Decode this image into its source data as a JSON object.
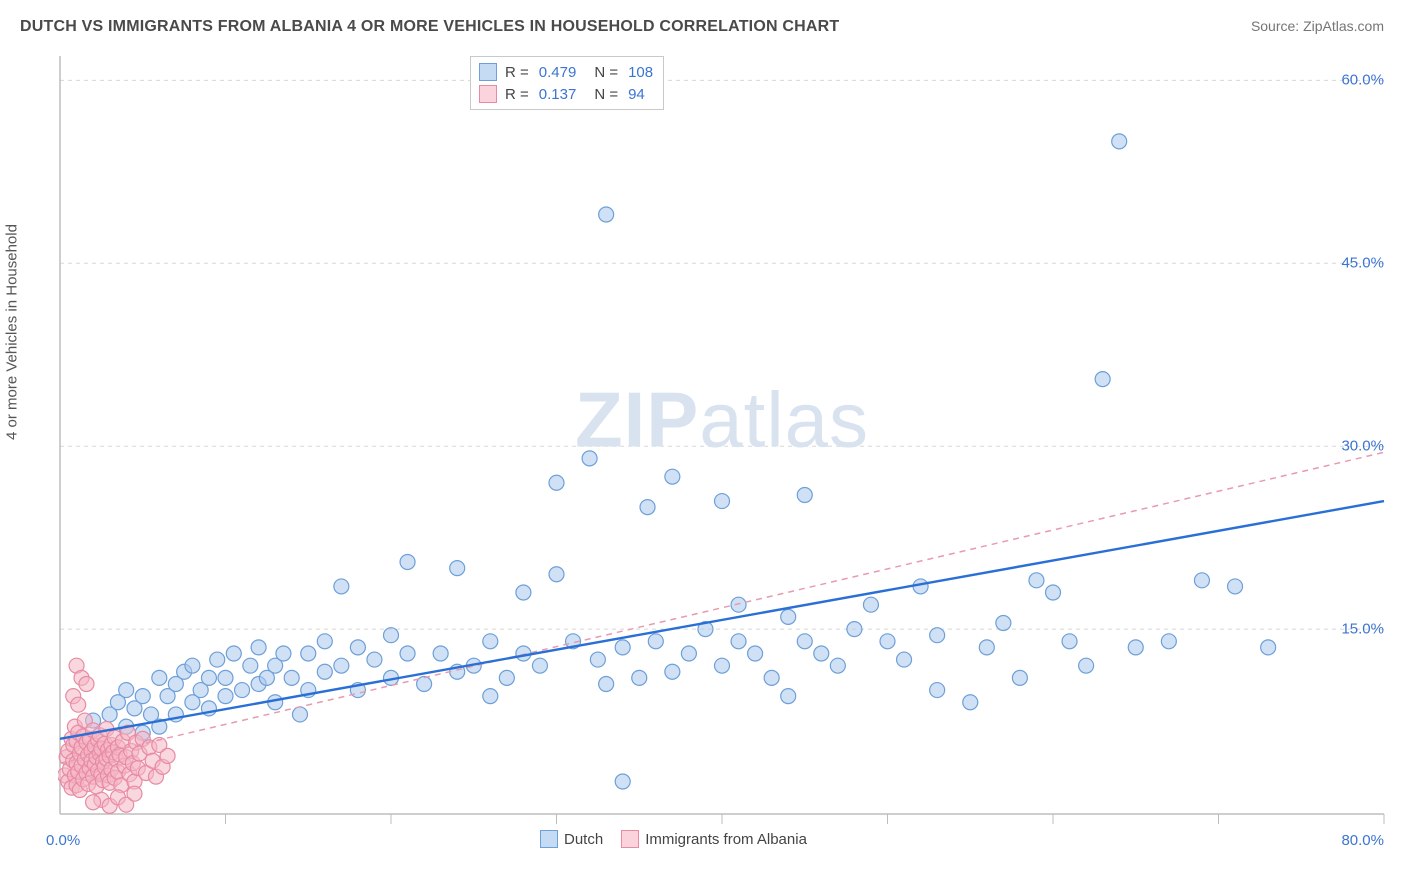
{
  "title": "DUTCH VS IMMIGRANTS FROM ALBANIA 4 OR MORE VEHICLES IN HOUSEHOLD CORRELATION CHART",
  "source": "Source: ZipAtlas.com",
  "y_axis_label": "4 or more Vehicles in Household",
  "watermark": {
    "bold": "ZIP",
    "light": "atlas"
  },
  "chart": {
    "type": "scatter",
    "background_color": "#ffffff",
    "grid_color": "#d8d8d8",
    "grid_dash": "4 4",
    "xlim": [
      0,
      80
    ],
    "ylim": [
      0,
      62
    ],
    "x_ticks": [
      10,
      20,
      30,
      40,
      50,
      60,
      70,
      80
    ],
    "y_ticks": [
      15,
      30,
      45,
      60
    ],
    "y_tick_labels": [
      "15.0%",
      "30.0%",
      "45.0%",
      "60.0%"
    ],
    "x_origin_label": "0.0%",
    "x_max_label": "80.0%",
    "marker_radius": 7.5,
    "marker_stroke_width": 1.2,
    "series": [
      {
        "name": "Dutch",
        "point_fill": "#a9c8ec",
        "point_fill_opacity": 0.55,
        "point_stroke": "#6d9fd8",
        "trend_color": "#2a6fd6",
        "trend_width": 2.4,
        "trend_dash": "none",
        "trend_x1": 0,
        "trend_y1": 6.0,
        "trend_x2": 80,
        "trend_y2": 25.5,
        "R": "0.479",
        "N": "108",
        "data": [
          [
            2,
            7.5
          ],
          [
            3,
            8
          ],
          [
            3.5,
            9
          ],
          [
            4,
            7
          ],
          [
            4,
            10
          ],
          [
            4.5,
            8.5
          ],
          [
            5,
            9.5
          ],
          [
            5,
            6.5
          ],
          [
            5.5,
            8
          ],
          [
            6,
            11
          ],
          [
            6,
            7
          ],
          [
            6.5,
            9.5
          ],
          [
            7,
            10.5
          ],
          [
            7,
            8
          ],
          [
            7.5,
            11.5
          ],
          [
            8,
            9
          ],
          [
            8,
            12
          ],
          [
            8.5,
            10
          ],
          [
            9,
            11
          ],
          [
            9,
            8.5
          ],
          [
            9.5,
            12.5
          ],
          [
            10,
            9.5
          ],
          [
            10,
            11
          ],
          [
            10.5,
            13
          ],
          [
            11,
            10
          ],
          [
            11.5,
            12
          ],
          [
            12,
            10.5
          ],
          [
            12,
            13.5
          ],
          [
            12.5,
            11
          ],
          [
            13,
            9
          ],
          [
            13,
            12
          ],
          [
            13.5,
            13
          ],
          [
            14,
            11
          ],
          [
            14.5,
            8
          ],
          [
            15,
            13
          ],
          [
            15,
            10
          ],
          [
            16,
            11.5
          ],
          [
            16,
            14
          ],
          [
            17,
            18.5
          ],
          [
            17,
            12
          ],
          [
            18,
            10
          ],
          [
            18,
            13.5
          ],
          [
            19,
            12.5
          ],
          [
            20,
            11
          ],
          [
            20,
            14.5
          ],
          [
            21,
            20.5
          ],
          [
            21,
            13
          ],
          [
            22,
            10.5
          ],
          [
            23,
            13
          ],
          [
            24,
            20
          ],
          [
            24,
            11.5
          ],
          [
            25,
            12
          ],
          [
            26,
            14
          ],
          [
            26,
            9.5
          ],
          [
            27,
            11
          ],
          [
            28,
            18
          ],
          [
            28,
            13
          ],
          [
            29,
            12
          ],
          [
            30,
            19.5
          ],
          [
            30,
            27
          ],
          [
            31,
            14
          ],
          [
            32,
            29
          ],
          [
            32.5,
            12.5
          ],
          [
            33,
            10.5
          ],
          [
            33,
            49
          ],
          [
            34,
            13.5
          ],
          [
            34,
            2.5
          ],
          [
            35,
            11
          ],
          [
            35.5,
            25
          ],
          [
            36,
            14
          ],
          [
            37,
            27.5
          ],
          [
            37,
            11.5
          ],
          [
            38,
            13
          ],
          [
            39,
            15
          ],
          [
            40,
            25.5
          ],
          [
            40,
            12
          ],
          [
            41,
            14
          ],
          [
            41,
            17
          ],
          [
            42,
            13
          ],
          [
            43,
            11
          ],
          [
            44,
            16
          ],
          [
            44,
            9.5
          ],
          [
            45,
            26
          ],
          [
            45,
            14
          ],
          [
            46,
            13
          ],
          [
            47,
            12
          ],
          [
            48,
            15
          ],
          [
            49,
            17
          ],
          [
            50,
            14
          ],
          [
            51,
            12.5
          ],
          [
            52,
            18.5
          ],
          [
            53,
            10
          ],
          [
            53,
            14.5
          ],
          [
            55,
            9
          ],
          [
            56,
            13.5
          ],
          [
            57,
            15.5
          ],
          [
            58,
            11
          ],
          [
            59,
            19
          ],
          [
            60,
            18
          ],
          [
            61,
            14
          ],
          [
            62,
            12
          ],
          [
            63,
            35.5
          ],
          [
            64,
            55
          ],
          [
            65,
            13.5
          ],
          [
            67,
            14
          ],
          [
            69,
            19
          ],
          [
            71,
            18.5
          ],
          [
            73,
            13.5
          ]
        ]
      },
      {
        "name": "Immigrants from Albania",
        "point_fill": "#f4b6c5",
        "point_fill_opacity": 0.55,
        "point_stroke": "#e88aa3",
        "trend_color": "#e79bb0",
        "trend_width": 1.5,
        "trend_dash": "6 5",
        "trend_x1": 0,
        "trend_y1": 4.0,
        "trend_x2": 80,
        "trend_y2": 29.5,
        "R": "0.137",
        "N": "94",
        "data": [
          [
            0.3,
            3
          ],
          [
            0.4,
            4.5
          ],
          [
            0.5,
            2.5
          ],
          [
            0.5,
            5
          ],
          [
            0.6,
            3.5
          ],
          [
            0.7,
            6
          ],
          [
            0.7,
            2
          ],
          [
            0.8,
            4.2
          ],
          [
            0.8,
            5.5
          ],
          [
            0.9,
            3
          ],
          [
            0.9,
            7
          ],
          [
            1,
            4
          ],
          [
            1,
            2.2
          ],
          [
            1,
            5.8
          ],
          [
            1.1,
            6.5
          ],
          [
            1.1,
            3.3
          ],
          [
            1.2,
            4.8
          ],
          [
            1.2,
            1.8
          ],
          [
            1.3,
            5.3
          ],
          [
            1.3,
            3.8
          ],
          [
            1.4,
            6.2
          ],
          [
            1.4,
            2.7
          ],
          [
            1.5,
            4.3
          ],
          [
            1.5,
            7.5
          ],
          [
            1.6,
            3.2
          ],
          [
            1.6,
            5.7
          ],
          [
            1.7,
            4.7
          ],
          [
            1.7,
            2.3
          ],
          [
            1.8,
            6
          ],
          [
            1.8,
            3.6
          ],
          [
            1.9,
            5
          ],
          [
            1.9,
            4.2
          ],
          [
            2,
            2.9
          ],
          [
            2,
            6.7
          ],
          [
            2.1,
            3.9
          ],
          [
            2.1,
            5.4
          ],
          [
            2.2,
            4.5
          ],
          [
            2.2,
            2.1
          ],
          [
            2.3,
            5.9
          ],
          [
            2.3,
            3.4
          ],
          [
            2.4,
            4.8
          ],
          [
            2.4,
            6.3
          ],
          [
            2.5,
            3.1
          ],
          [
            2.5,
            5.2
          ],
          [
            2.6,
            4.1
          ],
          [
            2.6,
            2.6
          ],
          [
            2.7,
            5.6
          ],
          [
            2.7,
            3.7
          ],
          [
            2.8,
            4.4
          ],
          [
            2.8,
            6.8
          ],
          [
            2.9,
            3
          ],
          [
            2.9,
            5.1
          ],
          [
            3,
            4.6
          ],
          [
            3,
            2.4
          ],
          [
            3.1,
            5.5
          ],
          [
            3.1,
            3.5
          ],
          [
            3.2,
            4.9
          ],
          [
            3.3,
            6.1
          ],
          [
            3.3,
            2.8
          ],
          [
            3.4,
            4.3
          ],
          [
            3.5,
            5.3
          ],
          [
            3.5,
            3.3
          ],
          [
            3.6,
            4.7
          ],
          [
            3.7,
            2.2
          ],
          [
            3.8,
            5.8
          ],
          [
            3.9,
            3.8
          ],
          [
            4,
            4.5
          ],
          [
            4.1,
            6.5
          ],
          [
            4.2,
            3.1
          ],
          [
            4.3,
            5
          ],
          [
            4.4,
            4
          ],
          [
            4.5,
            2.5
          ],
          [
            4.6,
            5.7
          ],
          [
            4.7,
            3.6
          ],
          [
            4.8,
            4.8
          ],
          [
            5,
            6
          ],
          [
            5.2,
            3.2
          ],
          [
            5.4,
            5.3
          ],
          [
            5.6,
            4.2
          ],
          [
            5.8,
            2.9
          ],
          [
            6,
            5.5
          ],
          [
            6.2,
            3.7
          ],
          [
            6.5,
            4.6
          ],
          [
            1,
            12
          ],
          [
            1.3,
            11
          ],
          [
            1.6,
            10.5
          ],
          [
            0.8,
            9.5
          ],
          [
            1.1,
            8.8
          ],
          [
            2.5,
            1
          ],
          [
            3,
            0.5
          ],
          [
            2,
            0.8
          ],
          [
            3.5,
            1.2
          ],
          [
            4,
            0.6
          ],
          [
            4.5,
            1.5
          ]
        ]
      }
    ]
  },
  "legend_top": [
    {
      "swatch_fill": "#c5daf3",
      "swatch_stroke": "#6d9fd8",
      "R_label": "R =",
      "R": "0.479",
      "N_label": "N =",
      "N": "108"
    },
    {
      "swatch_fill": "#fbd3dd",
      "swatch_stroke": "#e88aa3",
      "R_label": "R =",
      "R": "0.137",
      "N_label": "N =",
      "N": "94"
    }
  ],
  "legend_bottom": [
    {
      "swatch_fill": "#c5daf3",
      "swatch_stroke": "#6d9fd8",
      "label": "Dutch"
    },
    {
      "swatch_fill": "#fbd3dd",
      "swatch_stroke": "#e88aa3",
      "label": "Immigrants from Albania"
    }
  ]
}
